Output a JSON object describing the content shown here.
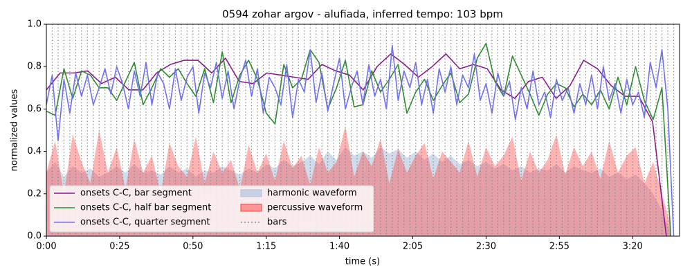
{
  "chart_data": {
    "type": "line",
    "title": "0594 zohar argov - alufiada, inferred tempo: 103 bpm",
    "xlabel": "time (s)",
    "ylabel": "normalized values",
    "xlim": [
      0,
      216
    ],
    "ylim": [
      0,
      1
    ],
    "xticks": [
      {
        "value": 0,
        "label": "0:00"
      },
      {
        "value": 25,
        "label": "0:25"
      },
      {
        "value": 50,
        "label": "0:50"
      },
      {
        "value": 75,
        "label": "1:15"
      },
      {
        "value": 100,
        "label": "1:40"
      },
      {
        "value": 125,
        "label": "2:05"
      },
      {
        "value": 150,
        "label": "2:30"
      },
      {
        "value": 175,
        "label": "2:55"
      },
      {
        "value": 200,
        "label": "3:20"
      }
    ],
    "yticks": [
      {
        "value": 0,
        "label": "0.0"
      },
      0.2,
      0.4,
      0.6,
      0.8,
      {
        "value": 1,
        "label": "1.0"
      }
    ],
    "legend": "lower left",
    "series": [
      {
        "name": "onsets C-C, bar segment",
        "style": "line",
        "color": "#8b1a8b",
        "x": [
          0,
          4.7,
          9.4,
          14.1,
          18.8,
          23.5,
          28.2,
          32.9,
          37.6,
          42.3,
          47,
          51.7,
          56.4,
          61.1,
          65.8,
          70.5,
          75.2,
          79.9,
          84.6,
          89.3,
          94,
          98.7,
          103.4,
          108.1,
          112.8,
          117.5,
          122.2,
          126.9,
          131.6,
          136.3,
          141,
          145.7,
          150.4,
          155.1,
          159.8,
          164.5,
          169.2,
          173.9,
          178.6,
          183.3,
          188,
          192.7,
          197.4,
          202.1,
          206.8,
          211.5
        ],
        "values": [
          0.69,
          0.77,
          0.77,
          0.78,
          0.72,
          0.75,
          0.69,
          0.69,
          0.77,
          0.81,
          0.83,
          0.83,
          0.77,
          0.84,
          0.73,
          0.72,
          0.77,
          0.76,
          0.75,
          0.74,
          0.81,
          0.78,
          0.76,
          0.69,
          0.8,
          0.86,
          0.81,
          0.75,
          0.8,
          0.86,
          0.79,
          0.81,
          0.79,
          0.69,
          0.65,
          0.73,
          0.75,
          0.65,
          0.71,
          0.83,
          0.79,
          0.71,
          0.66,
          0.66,
          0.54,
          0
        ]
      },
      {
        "name": "onsets C-C, half bar segment",
        "style": "line",
        "color": "#2e8b2e",
        "x": [
          0,
          3,
          6,
          9,
          12,
          15,
          18,
          21,
          24,
          27,
          30,
          33,
          36,
          39,
          42,
          45,
          48,
          51,
          54,
          57,
          60,
          63,
          66,
          69,
          72,
          75,
          78,
          81,
          84,
          87,
          90,
          93,
          96,
          99,
          102,
          105,
          108,
          111,
          114,
          117,
          120,
          123,
          126,
          129,
          132,
          135,
          138,
          141,
          144,
          147,
          150,
          153,
          156,
          159,
          162,
          165,
          168,
          171,
          174,
          177,
          180,
          183,
          186,
          189,
          192,
          195,
          198,
          201,
          204,
          207,
          210,
          213
        ],
        "values": [
          0.59,
          0.57,
          0.79,
          0.65,
          0.78,
          0.76,
          0.7,
          0.7,
          0.64,
          0.73,
          0.82,
          0.62,
          0.7,
          0.79,
          0.75,
          0.79,
          0.72,
          0.66,
          0.79,
          0.63,
          0.87,
          0.63,
          0.76,
          0.83,
          0.74,
          0.58,
          0.53,
          0.81,
          0.7,
          0.74,
          0.88,
          0.82,
          0.6,
          0.7,
          0.83,
          0.61,
          0.62,
          0.78,
          0.68,
          0.74,
          0.81,
          0.58,
          0.68,
          0.74,
          0.64,
          0.71,
          0.77,
          0.63,
          0.67,
          0.84,
          0.91,
          0.73,
          0.66,
          0.85,
          0.76,
          0.67,
          0.57,
          0.67,
          0.72,
          0.7,
          0.61,
          0.67,
          0.62,
          0.69,
          0.6,
          0.75,
          0.62,
          0.8,
          0.64,
          0.55,
          0.7,
          0
        ]
      },
      {
        "name": "onsets C-C, quarter segment",
        "style": "line",
        "color": "#6f6ff0",
        "x": [
          0,
          2,
          4,
          6,
          8,
          10,
          12,
          14,
          16,
          18,
          20,
          22,
          24,
          26,
          28,
          30,
          32,
          34,
          36,
          38,
          40,
          42,
          44,
          46,
          48,
          50,
          52,
          54,
          56,
          58,
          60,
          62,
          64,
          66,
          68,
          70,
          72,
          74,
          76,
          78,
          80,
          82,
          84,
          86,
          88,
          90,
          92,
          94,
          96,
          98,
          100,
          102,
          104,
          106,
          108,
          110,
          112,
          114,
          116,
          118,
          120,
          122,
          124,
          126,
          128,
          130,
          132,
          134,
          136,
          138,
          140,
          142,
          144,
          146,
          148,
          150,
          152,
          154,
          156,
          158,
          160,
          162,
          164,
          166,
          168,
          170,
          172,
          174,
          176,
          178,
          180,
          182,
          184,
          186,
          188,
          190,
          192,
          194,
          196,
          198,
          200,
          202,
          204,
          206,
          208,
          210,
          212,
          214
        ],
        "values": [
          0.62,
          0.76,
          0.45,
          0.74,
          0.58,
          0.77,
          0.66,
          0.76,
          0.62,
          0.7,
          0.79,
          0.67,
          0.8,
          0.72,
          0.6,
          0.78,
          0.66,
          0.82,
          0.62,
          0.77,
          0.72,
          0.6,
          0.79,
          0.64,
          0.75,
          0.8,
          0.58,
          0.77,
          0.7,
          0.82,
          0.65,
          0.78,
          0.6,
          0.74,
          0.83,
          0.66,
          0.79,
          0.58,
          0.75,
          0.7,
          0.62,
          0.81,
          0.56,
          0.74,
          0.68,
          0.88,
          0.63,
          0.77,
          0.59,
          0.72,
          0.84,
          0.6,
          0.7,
          0.78,
          0.62,
          0.81,
          0.66,
          0.74,
          0.6,
          0.9,
          0.64,
          0.78,
          0.7,
          0.82,
          0.62,
          0.74,
          0.58,
          0.79,
          0.68,
          0.8,
          0.62,
          0.76,
          0.7,
          0.86,
          0.64,
          0.72,
          0.58,
          0.77,
          0.66,
          0.73,
          0.55,
          0.7,
          0.6,
          0.78,
          0.62,
          0.68,
          0.56,
          0.74,
          0.64,
          0.7,
          0.58,
          0.72,
          0.62,
          0.76,
          0.6,
          0.8,
          0.64,
          0.72,
          0.58,
          0.74,
          0.62,
          0.68,
          0.56,
          0.82,
          0.7,
          0.88,
          0.6,
          0
        ]
      },
      {
        "name": "harmonic waveform",
        "style": "area",
        "color": "#b0c4de",
        "x": [
          0,
          3,
          6,
          9,
          12,
          15,
          18,
          21,
          24,
          27,
          30,
          33,
          36,
          39,
          42,
          45,
          48,
          51,
          54,
          57,
          60,
          63,
          66,
          69,
          72,
          75,
          78,
          81,
          84,
          87,
          90,
          93,
          96,
          99,
          102,
          105,
          108,
          111,
          114,
          117,
          120,
          123,
          126,
          129,
          132,
          135,
          138,
          141,
          144,
          147,
          150,
          153,
          156,
          159,
          162,
          165,
          168,
          171,
          174,
          177,
          180,
          183,
          186,
          189,
          192,
          195,
          198,
          201,
          204,
          207,
          210,
          213
        ],
        "values": [
          0.3,
          0.35,
          0.28,
          0.33,
          0.3,
          0.32,
          0.28,
          0.3,
          0.33,
          0.3,
          0.34,
          0.3,
          0.31,
          0.29,
          0.33,
          0.3,
          0.32,
          0.28,
          0.31,
          0.3,
          0.33,
          0.31,
          0.29,
          0.32,
          0.3,
          0.34,
          0.32,
          0.36,
          0.33,
          0.35,
          0.38,
          0.34,
          0.4,
          0.36,
          0.42,
          0.38,
          0.4,
          0.37,
          0.42,
          0.39,
          0.41,
          0.37,
          0.4,
          0.36,
          0.39,
          0.35,
          0.38,
          0.34,
          0.36,
          0.33,
          0.35,
          0.32,
          0.34,
          0.31,
          0.33,
          0.3,
          0.32,
          0.31,
          0.34,
          0.3,
          0.33,
          0.31,
          0.3,
          0.32,
          0.28,
          0.3,
          0.27,
          0.29,
          0.25,
          0.2,
          0.12,
          0.02
        ]
      },
      {
        "name": "percussive waveform",
        "style": "area",
        "color": "#ff4040",
        "x": [
          0,
          3,
          6,
          9,
          12,
          15,
          18,
          21,
          24,
          27,
          30,
          33,
          36,
          39,
          42,
          45,
          48,
          51,
          54,
          57,
          60,
          63,
          66,
          69,
          72,
          75,
          78,
          81,
          84,
          87,
          90,
          93,
          96,
          99,
          102,
          105,
          108,
          111,
          114,
          117,
          120,
          123,
          126,
          129,
          132,
          135,
          138,
          141,
          144,
          147,
          150,
          153,
          156,
          159,
          162,
          165,
          168,
          171,
          174,
          177,
          180,
          183,
          186,
          189,
          192,
          195,
          198,
          201,
          204,
          207,
          210,
          213
        ],
        "values": [
          0.3,
          0.45,
          0.2,
          0.48,
          0.35,
          0.25,
          0.5,
          0.3,
          0.42,
          0.22,
          0.46,
          0.3,
          0.38,
          0.2,
          0.44,
          0.33,
          0.28,
          0.47,
          0.25,
          0.4,
          0.3,
          0.36,
          0.22,
          0.43,
          0.3,
          0.39,
          0.26,
          0.45,
          0.32,
          0.38,
          0.24,
          0.42,
          0.3,
          0.35,
          0.52,
          0.28,
          0.4,
          0.33,
          0.46,
          0.25,
          0.41,
          0.3,
          0.38,
          0.44,
          0.27,
          0.4,
          0.35,
          0.3,
          0.45,
          0.28,
          0.42,
          0.33,
          0.38,
          0.47,
          0.26,
          0.4,
          0.3,
          0.36,
          0.48,
          0.29,
          0.42,
          0.33,
          0.4,
          0.27,
          0.45,
          0.3,
          0.38,
          0.42,
          0.25,
          0.35,
          0.2,
          0.05
        ]
      },
      {
        "name": "bars",
        "style": "vlines",
        "color": "#888888",
        "x": [
          0,
          2,
          4,
          6,
          8,
          10,
          12,
          14,
          16,
          18,
          20,
          22,
          24,
          26,
          28,
          30,
          32,
          34,
          36,
          38,
          40,
          42,
          44,
          46,
          48,
          50,
          52,
          54,
          56,
          58,
          60,
          62,
          64,
          66,
          68,
          70,
          72,
          74,
          76,
          78,
          80,
          82,
          84,
          86,
          88,
          90,
          92,
          94,
          96,
          98,
          100,
          102,
          104,
          106,
          108,
          110,
          112,
          114,
          116,
          118,
          120,
          122,
          124,
          126,
          128,
          130,
          132,
          134,
          136,
          138,
          140,
          142,
          144,
          146,
          148,
          150,
          152,
          154,
          156,
          158,
          160,
          162,
          164,
          166,
          168,
          170,
          172,
          174,
          176,
          178,
          180,
          182,
          184,
          186,
          188,
          190,
          192,
          194,
          196,
          198,
          200,
          202,
          204,
          206,
          208,
          210,
          212,
          214
        ]
      }
    ]
  }
}
